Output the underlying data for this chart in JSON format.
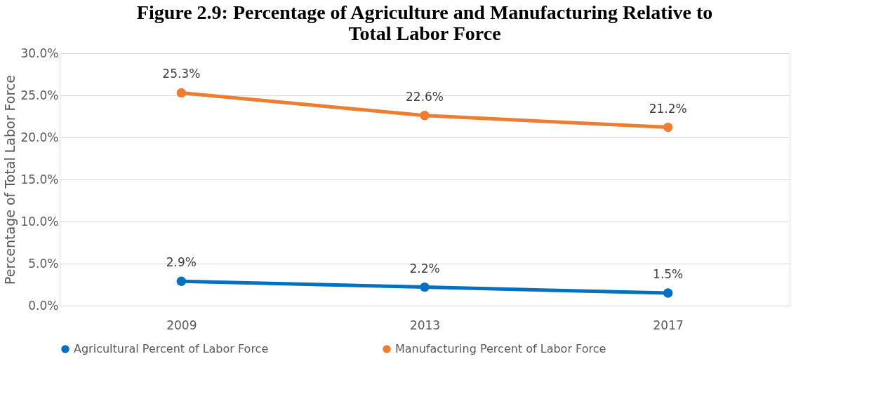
{
  "chart_data": {
    "type": "line",
    "title": [
      "Figure 2.9: Percentage of Agriculture and Manufacturing Relative to",
      "Total Labor Force"
    ],
    "ylabel": "Percentage of Total Labor Force",
    "categories": [
      "2009",
      "2013",
      "2017"
    ],
    "series": [
      {
        "name": "Agricultural Percent of Labor Force",
        "color": "#0070c0",
        "values": [
          2.9,
          2.2,
          1.5
        ],
        "value_labels": [
          "2.9%",
          "2.2%",
          "1.5%"
        ]
      },
      {
        "name": "Manufacturing Percent of Labor Force",
        "color": "#ed7d31",
        "values": [
          25.3,
          22.6,
          21.2
        ],
        "value_labels": [
          "25.3%",
          "22.6%",
          "21.2%"
        ]
      }
    ],
    "ylim": [
      0,
      30
    ],
    "yticks": [
      {
        "value": 0,
        "label": "0.0%"
      },
      {
        "value": 5,
        "label": "5.0%"
      },
      {
        "value": 10,
        "label": "10.0%"
      },
      {
        "value": 15,
        "label": "15.0%"
      },
      {
        "value": 20,
        "label": "20.0%"
      },
      {
        "value": 25,
        "label": "25.0%"
      },
      {
        "value": 30,
        "label": "30.0%"
      }
    ],
    "grid": "y",
    "legend": "bottom",
    "marker": "circle",
    "line_style": "solid"
  }
}
